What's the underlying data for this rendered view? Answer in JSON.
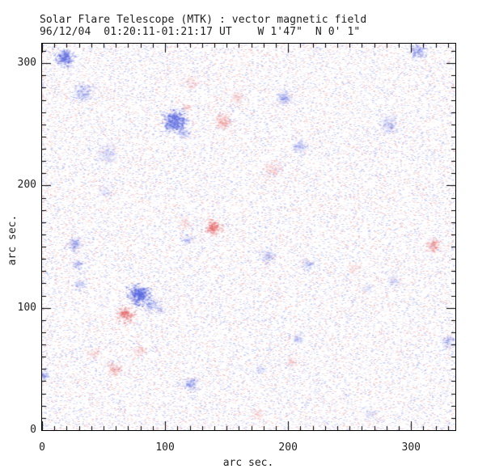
{
  "header": {
    "title": "Solar Flare Telescope (MTK) : vector magnetic field",
    "subtitle": "96/12/04  01:20:11-01:21:17 UT    W 1'47\"  N 0' 1\""
  },
  "axes": {
    "x": {
      "label": "arc sec.",
      "ticks": [
        "0",
        "100",
        "200",
        "300"
      ],
      "tick_values": [
        0,
        100,
        200,
        300
      ],
      "minor_step": 10
    },
    "y": {
      "label": "arc sec.",
      "ticks": [
        "0",
        "100",
        "200",
        "300"
      ],
      "tick_values": [
        0,
        100,
        200,
        300
      ],
      "minor_step": 10
    }
  },
  "colors": {
    "background": "#ffffff",
    "frame": "#000000",
    "text": "#1f1f1f",
    "negative_polarity_blue": "#5a69e1",
    "positive_polarity_red": "#e66464"
  },
  "chart_data": {
    "type": "heatmap",
    "title": "Solar Flare Telescope (MTK) : vector magnetic field",
    "subtitle": "96/12/04  01:20:11-01:21:17 UT    W 1'47\"  N 0' 1\"",
    "xlabel": "arc sec.",
    "ylabel": "arc sec.",
    "xlim": [
      0,
      336
    ],
    "ylim": [
      0,
      316
    ],
    "x_ticks": [
      0,
      100,
      200,
      300
    ],
    "y_ticks": [
      0,
      100,
      200,
      300
    ],
    "grid": false,
    "legend": false,
    "colormap": {
      "negative": "blue",
      "positive": "red",
      "background": "white"
    },
    "noise": {
      "density": 0.4,
      "blue_fraction": 0.56,
      "alpha_min": 0.07,
      "alpha_max": 0.36
    },
    "features": [
      {
        "x": 18,
        "y": 305,
        "r": 7,
        "amp": 0.85,
        "polarity": "blue"
      },
      {
        "x": 33,
        "y": 276,
        "r": 8,
        "amp": 0.45,
        "polarity": "blue"
      },
      {
        "x": 108,
        "y": 253,
        "r": 9,
        "amp": 0.95,
        "polarity": "blue"
      },
      {
        "x": 115,
        "y": 243,
        "r": 5,
        "amp": 0.4,
        "polarity": "blue"
      },
      {
        "x": 52,
        "y": 226,
        "r": 9,
        "amp": 0.3,
        "polarity": "blue"
      },
      {
        "x": 51,
        "y": 196,
        "r": 5,
        "amp": 0.3,
        "polarity": "blue"
      },
      {
        "x": 305,
        "y": 310,
        "r": 7,
        "amp": 0.55,
        "polarity": "blue"
      },
      {
        "x": 196,
        "y": 272,
        "r": 7,
        "amp": 0.45,
        "polarity": "blue"
      },
      {
        "x": 282,
        "y": 250,
        "r": 8,
        "amp": 0.4,
        "polarity": "blue"
      },
      {
        "x": 209,
        "y": 232,
        "r": 6,
        "amp": 0.45,
        "polarity": "blue"
      },
      {
        "x": 26,
        "y": 152,
        "r": 6,
        "amp": 0.5,
        "polarity": "blue"
      },
      {
        "x": 28,
        "y": 136,
        "r": 5,
        "amp": 0.45,
        "polarity": "blue"
      },
      {
        "x": 30,
        "y": 120,
        "r": 5,
        "amp": 0.4,
        "polarity": "blue"
      },
      {
        "x": 78,
        "y": 111,
        "r": 8,
        "amp": 1.0,
        "polarity": "blue"
      },
      {
        "x": 88,
        "y": 103,
        "r": 6,
        "amp": 0.5,
        "polarity": "blue"
      },
      {
        "x": 95,
        "y": 99,
        "r": 4,
        "amp": 0.35,
        "polarity": "blue"
      },
      {
        "x": 118,
        "y": 156,
        "r": 5,
        "amp": 0.4,
        "polarity": "blue"
      },
      {
        "x": 120,
        "y": 38,
        "r": 6,
        "amp": 0.5,
        "polarity": "blue"
      },
      {
        "x": 0,
        "y": 45,
        "r": 5,
        "amp": 0.55,
        "polarity": "blue"
      },
      {
        "x": 183,
        "y": 142,
        "r": 7,
        "amp": 0.35,
        "polarity": "blue"
      },
      {
        "x": 216,
        "y": 136,
        "r": 5,
        "amp": 0.4,
        "polarity": "blue"
      },
      {
        "x": 285,
        "y": 122,
        "r": 6,
        "amp": 0.3,
        "polarity": "blue"
      },
      {
        "x": 264,
        "y": 116,
        "r": 4,
        "amp": 0.3,
        "polarity": "blue"
      },
      {
        "x": 208,
        "y": 75,
        "r": 5,
        "amp": 0.4,
        "polarity": "blue"
      },
      {
        "x": 177,
        "y": 50,
        "r": 5,
        "amp": 0.3,
        "polarity": "blue"
      },
      {
        "x": 331,
        "y": 72,
        "r": 6,
        "amp": 0.45,
        "polarity": "blue"
      },
      {
        "x": 266,
        "y": 14,
        "r": 5,
        "amp": 0.3,
        "polarity": "blue"
      },
      {
        "x": 68,
        "y": 95,
        "r": 6,
        "amp": 0.8,
        "polarity": "red"
      },
      {
        "x": 139,
        "y": 166,
        "r": 6,
        "amp": 0.8,
        "polarity": "red"
      },
      {
        "x": 116,
        "y": 170,
        "r": 5,
        "amp": 0.3,
        "polarity": "red"
      },
      {
        "x": 121,
        "y": 284,
        "r": 6,
        "amp": 0.3,
        "polarity": "red"
      },
      {
        "x": 117,
        "y": 264,
        "r": 4,
        "amp": 0.35,
        "polarity": "red"
      },
      {
        "x": 147,
        "y": 253,
        "r": 7,
        "amp": 0.5,
        "polarity": "red"
      },
      {
        "x": 157,
        "y": 272,
        "r": 6,
        "amp": 0.3,
        "polarity": "red"
      },
      {
        "x": 187,
        "y": 213,
        "r": 8,
        "amp": 0.3,
        "polarity": "red"
      },
      {
        "x": 318,
        "y": 151,
        "r": 6,
        "amp": 0.55,
        "polarity": "red"
      },
      {
        "x": 43,
        "y": 63,
        "r": 5,
        "amp": 0.3,
        "polarity": "red"
      },
      {
        "x": 79,
        "y": 65,
        "r": 5,
        "amp": 0.35,
        "polarity": "red"
      },
      {
        "x": 58,
        "y": 50,
        "r": 6,
        "amp": 0.45,
        "polarity": "red"
      },
      {
        "x": 203,
        "y": 56,
        "r": 5,
        "amp": 0.3,
        "polarity": "red"
      },
      {
        "x": 175,
        "y": 13,
        "r": 5,
        "amp": 0.3,
        "polarity": "red"
      },
      {
        "x": 254,
        "y": 132,
        "r": 5,
        "amp": 0.3,
        "polarity": "red"
      }
    ]
  }
}
